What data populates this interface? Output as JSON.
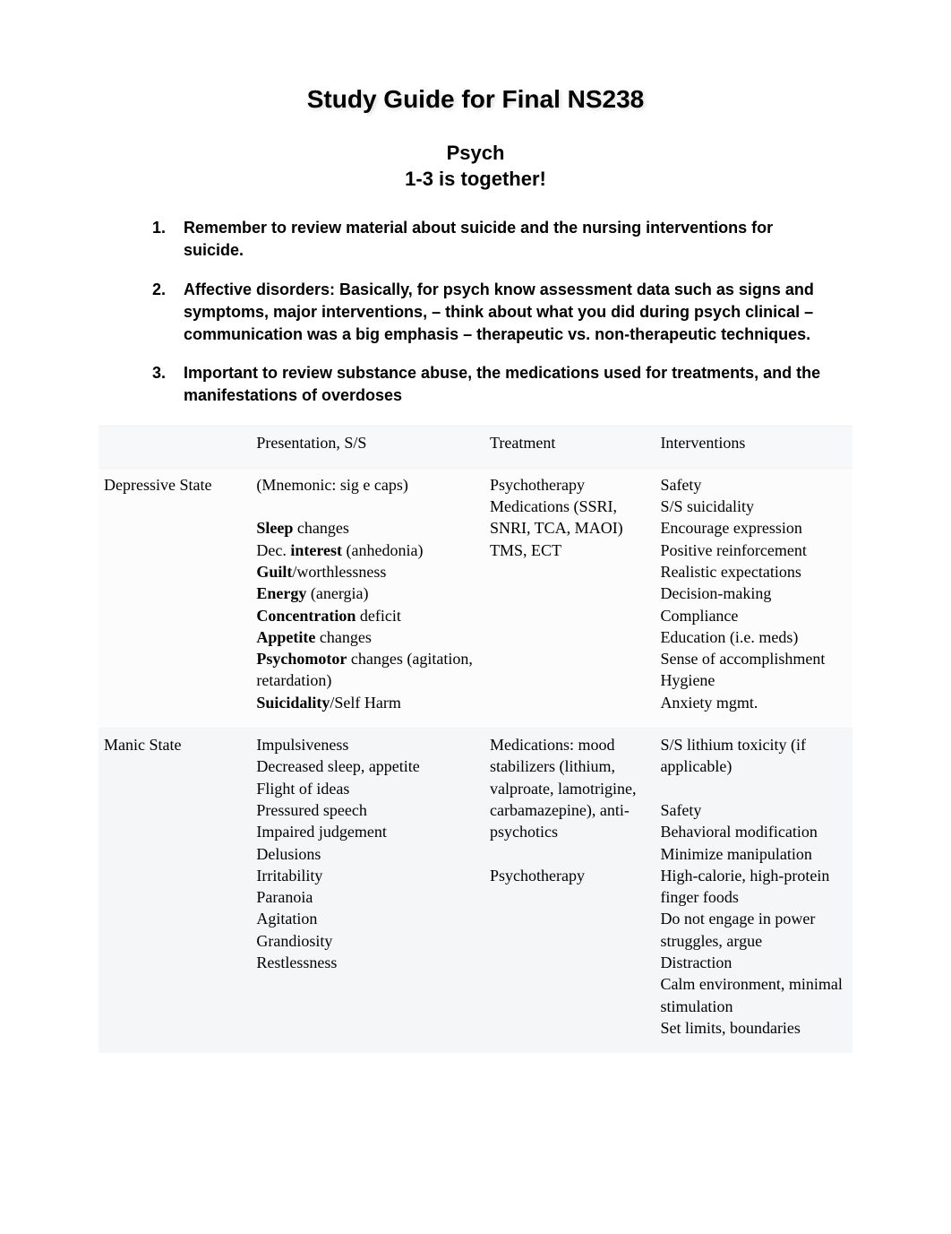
{
  "document": {
    "title": "Study Guide for Final NS238",
    "subtitle_line1": "Psych",
    "subtitle_line2": "1-3 is together!",
    "items": [
      {
        "num": "1.",
        "text": "Remember to review material about suicide and the nursing interventions for suicide."
      },
      {
        "num": "2.",
        "text": "Affective disorders: Basically, for psych know assessment data such as signs and symptoms, major interventions, – think about what you did during psych clinical – communication was a big emphasis – therapeutic vs. non-therapeutic techniques."
      },
      {
        "num": "3.",
        "text": "Important to review substance abuse, the medications used for treatments, and the manifestations of overdoses"
      }
    ],
    "table": {
      "header": {
        "label": "",
        "presentation": "Presentation, S/S",
        "treatment": "Treatment",
        "interventions": "Interventions"
      },
      "rows": [
        {
          "label": "Depressive State",
          "presentation_html": "(Mnemonic: sig e caps)<br><br><b>Sleep</b> changes<br>Dec. <b>interest</b> (anhedonia)<br><b>Guilt</b>/worthlessness<br><b>Energy</b> (anergia)<br><b>Concentration</b> deficit<br><b>Appetite</b> changes<br><b>Psychomotor</b> changes (agitation, retardation)<br><b>Suicidality</b>/Self Harm",
          "treatment_html": "Psychotherapy<br>Medications (SSRI, SNRI, TCA, MAOI)<br>TMS, ECT",
          "interventions_html": "Safety<br>S/S suicidality<br>Encourage expression<br>Positive reinforcement<br>Realistic expectations<br>Decision-making<br>Compliance<br>Education (i.e. meds)<br>Sense of accomplishment<br>Hygiene<br>Anxiety mgmt."
        },
        {
          "label": "Manic State",
          "presentation_html": "Impulsiveness<br>Decreased sleep, appetite<br>Flight of ideas<br>Pressured speech<br>Impaired judgement<br>Delusions<br>Irritability<br>Paranoia<br>Agitation<br>Grandiosity<br>Restlessness",
          "treatment_html": "Medications: mood stabilizers (lithium, valproate, lamotrigine, carbamazepine), anti-psychotics<br><br>Psychotherapy",
          "interventions_html": "S/S lithium toxicity (if applicable)<br><br>Safety<br>Behavioral modification<br>Minimize manipulation<br>High-calorie, high-protein finger foods<br>Do not engage in power struggles, argue<br>Distraction<br>Calm environment, minimal stimulation<br>Set limits, boundaries"
        }
      ]
    },
    "styling": {
      "page_bg": "#ffffff",
      "text_color": "#000000",
      "title_font_family": "Arial",
      "title_font_size": 28,
      "subtitle_font_size": 22,
      "list_font_size": 18,
      "table_font_family": "Georgia",
      "table_font_size": 18,
      "row_shade_light": "#fcfcfd",
      "row_shade_dark": "#f5f6f8",
      "header_shade": "#f7f8fa"
    }
  }
}
